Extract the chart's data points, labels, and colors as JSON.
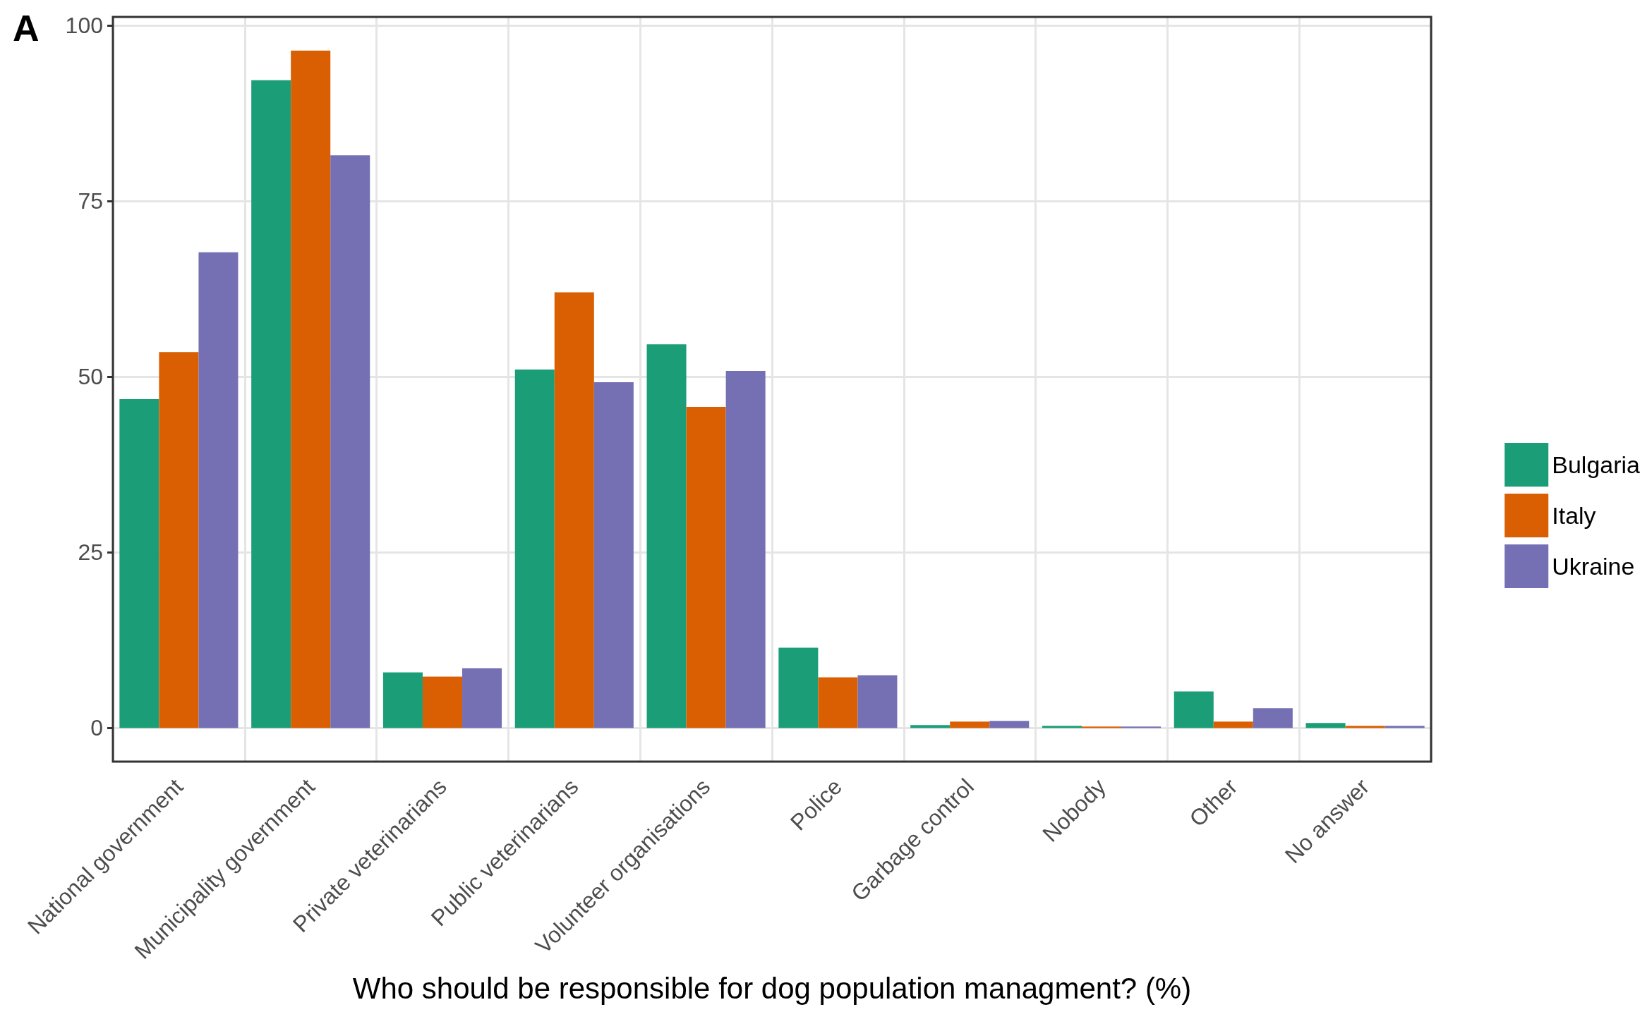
{
  "chart_data": {
    "type": "bar",
    "xlabel": "Who should be responsible for dog population managment? (%)",
    "annotations": [
      "A"
    ],
    "categories": [
      "National government",
      "Municipality government",
      "Private veterinarians",
      "Public veterinarians",
      "Volunteer organisations",
      "Police",
      "Garbage control",
      "Nobody",
      "Other",
      "No answer"
    ],
    "series": [
      {
        "name": "Bulgaria",
        "color": "#1b9e77",
        "values": [
          46.8,
          92.2,
          7.9,
          51,
          54.6,
          11.4,
          0.4,
          0.3,
          5.2,
          0.7
        ]
      },
      {
        "name": "Italy",
        "color": "#d95f02",
        "values": [
          53.5,
          96.4,
          7.3,
          62,
          45.7,
          7.2,
          0.9,
          0.2,
          0.9,
          0.3
        ]
      },
      {
        "name": "Ukraine",
        "color": "#7570b3",
        "values": [
          67.7,
          81.5,
          8.5,
          49.2,
          50.8,
          7.5,
          1.0,
          0.2,
          2.8,
          0.3
        ]
      }
    ],
    "ylim": [
      -4.8,
      101.2
    ],
    "yticks": [
      0,
      25,
      50,
      75,
      100
    ],
    "grid": true,
    "legend": "right"
  }
}
